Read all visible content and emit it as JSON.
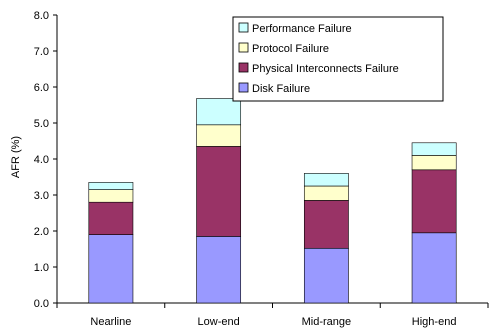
{
  "chart_data": {
    "type": "bar",
    "stacked": true,
    "title": "",
    "xlabel": "",
    "ylabel": "AFR (%)",
    "ylim": [
      0,
      8
    ],
    "yticks": [
      "0.0",
      "1.0",
      "2.0",
      "3.0",
      "4.0",
      "5.0",
      "6.0",
      "7.0",
      "8.0"
    ],
    "categories": [
      "Nearline",
      "Low-end",
      "Mid-range",
      "High-end"
    ],
    "series": [
      {
        "name": "Disk Failure",
        "color": "#9999ff",
        "values": [
          1.9,
          1.85,
          1.52,
          1.95
        ]
      },
      {
        "name": "Physical Interconnects Failure",
        "color": "#993366",
        "values": [
          0.9,
          2.5,
          1.33,
          1.75
        ]
      },
      {
        "name": "Protocol Failure",
        "color": "#ffffcc",
        "values": [
          0.35,
          0.6,
          0.4,
          0.4
        ]
      },
      {
        "name": "Performance Failure",
        "color": "#ccffff",
        "values": [
          0.2,
          0.73,
          0.35,
          0.35
        ]
      }
    ],
    "legend": {
      "position": "top-right",
      "order": [
        "Performance Failure",
        "Protocol Failure",
        "Physical Interconnects Failure",
        "Disk Failure"
      ]
    },
    "grid": false
  }
}
